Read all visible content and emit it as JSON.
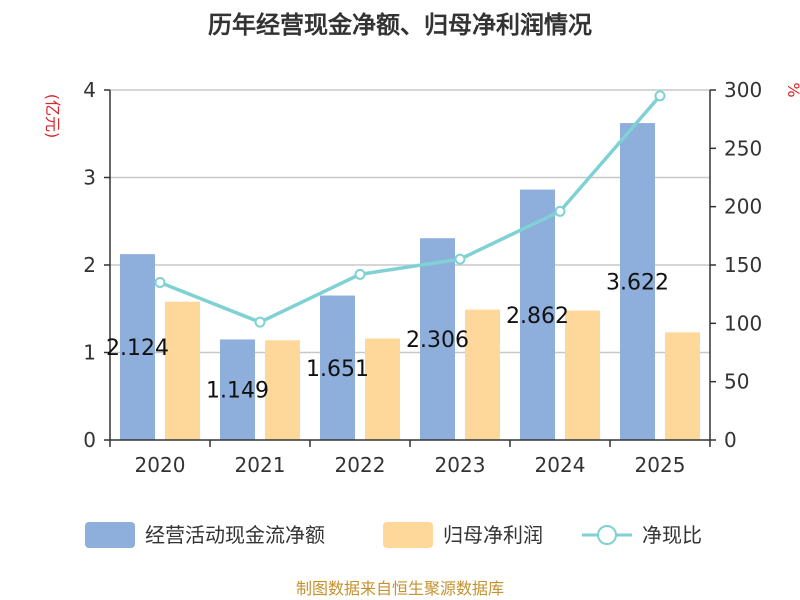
{
  "title": "历年经营现金净额、归母净利润情况",
  "left_unit": "(亿元)",
  "right_unit": "%",
  "source": "制图数据来自恒生聚源数据库",
  "colors": {
    "bar1": "#8eaedc",
    "bar2": "#fdd89a",
    "line": "#7fd1d4",
    "unit": "#d9262a",
    "source": "#c5922e",
    "grid": "#c8c8c8",
    "axis": "#333333"
  },
  "chart_data": {
    "type": "bar",
    "categories": [
      "2020",
      "2021",
      "2022",
      "2023",
      "2024",
      "2025"
    ],
    "series": [
      {
        "name": "经营活动现金流净额",
        "type": "bar",
        "axis": "left",
        "values": [
          2.124,
          1.149,
          1.651,
          2.306,
          2.862,
          3.622
        ],
        "labels": [
          "2.124",
          "1.149",
          "1.651",
          "2.306",
          "2.862",
          "3.622"
        ]
      },
      {
        "name": "归母净利润",
        "type": "bar",
        "axis": "left",
        "values": [
          1.58,
          1.14,
          1.16,
          1.49,
          1.48,
          1.23
        ]
      },
      {
        "name": "净现比",
        "type": "line",
        "axis": "right",
        "values": [
          135,
          101,
          142,
          155,
          196,
          295
        ]
      }
    ],
    "y_left": {
      "range": [
        0,
        4
      ],
      "ticks": [
        "0",
        "1",
        "2",
        "3",
        "4"
      ]
    },
    "y_right": {
      "range": [
        0,
        300
      ],
      "ticks": [
        "0",
        "50",
        "100",
        "150",
        "200",
        "250",
        "300"
      ]
    },
    "grid": true,
    "legend_position": "bottom"
  }
}
